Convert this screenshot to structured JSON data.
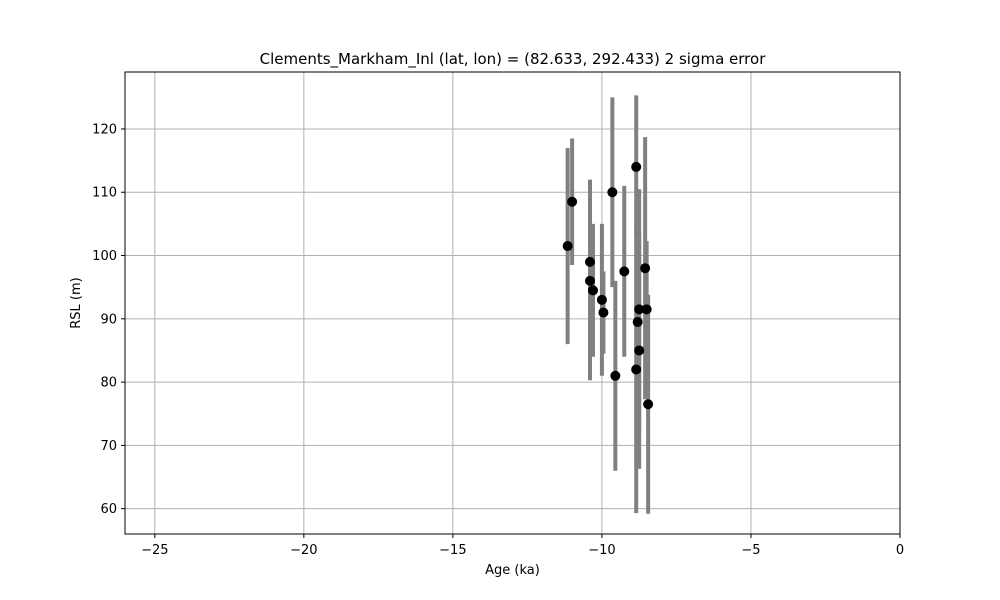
{
  "chart_data": {
    "type": "scatter",
    "title": "Clements_Markham_Inl (lat, lon) = (82.633, 292.433)  2 sigma error",
    "xlabel": "Age (ka)",
    "ylabel": "RSL (m)",
    "xlim": [
      -26,
      0
    ],
    "ylim": [
      56,
      129
    ],
    "xticks": [
      -25,
      -20,
      -15,
      -10,
      -5,
      0
    ],
    "yticks": [
      60,
      70,
      80,
      90,
      100,
      110,
      120
    ],
    "xtick_labels": [
      "−25",
      "−20",
      "−15",
      "−10",
      "−5",
      "0"
    ],
    "ytick_labels": [
      "60",
      "70",
      "80",
      "90",
      "100",
      "110",
      "120"
    ],
    "grid": true,
    "colors": {
      "marker": "#000000",
      "error_bar": "#808080",
      "grid": "#b0b0b0",
      "axes": "#000000"
    },
    "series": [
      {
        "points": [
          {
            "x": -11.15,
            "y": 101.5,
            "y_low": 86.0,
            "y_high": 117.0
          },
          {
            "x": -11.0,
            "y": 108.5,
            "y_low": 98.5,
            "y_high": 118.5
          },
          {
            "x": -10.4,
            "y": 99.0,
            "y_low": 86.0,
            "y_high": 112.0
          },
          {
            "x": -10.4,
            "y": 96.0,
            "y_low": 80.3,
            "y_high": 105.0
          },
          {
            "x": -10.3,
            "y": 94.5,
            "y_low": 84.0,
            "y_high": 105.0
          },
          {
            "x": -10.0,
            "y": 93.0,
            "y_low": 81.0,
            "y_high": 105.0
          },
          {
            "x": -9.95,
            "y": 91.0,
            "y_low": 84.5,
            "y_high": 97.5
          },
          {
            "x": -9.65,
            "y": 110.0,
            "y_low": 95.0,
            "y_high": 125.0
          },
          {
            "x": -9.55,
            "y": 81.0,
            "y_low": 66.0,
            "y_high": 96.0
          },
          {
            "x": -9.25,
            "y": 97.5,
            "y_low": 84.0,
            "y_high": 111.0
          },
          {
            "x": -8.85,
            "y": 114.0,
            "y_low": 103.0,
            "y_high": 125.3
          },
          {
            "x": -8.85,
            "y": 82.0,
            "y_low": 59.3,
            "y_high": 104.7
          },
          {
            "x": -8.8,
            "y": 89.5,
            "y_low": 68.5,
            "y_high": 110.5
          },
          {
            "x": -8.75,
            "y": 91.5,
            "y_low": 72.5,
            "y_high": 110.5
          },
          {
            "x": -8.75,
            "y": 85.0,
            "y_low": 66.3,
            "y_high": 103.7
          },
          {
            "x": -8.55,
            "y": 98.0,
            "y_low": 77.3,
            "y_high": 118.7
          },
          {
            "x": -8.5,
            "y": 91.5,
            "y_low": 80.7,
            "y_high": 102.3
          },
          {
            "x": -8.45,
            "y": 76.5,
            "y_low": 59.2,
            "y_high": 93.8
          }
        ]
      }
    ]
  }
}
